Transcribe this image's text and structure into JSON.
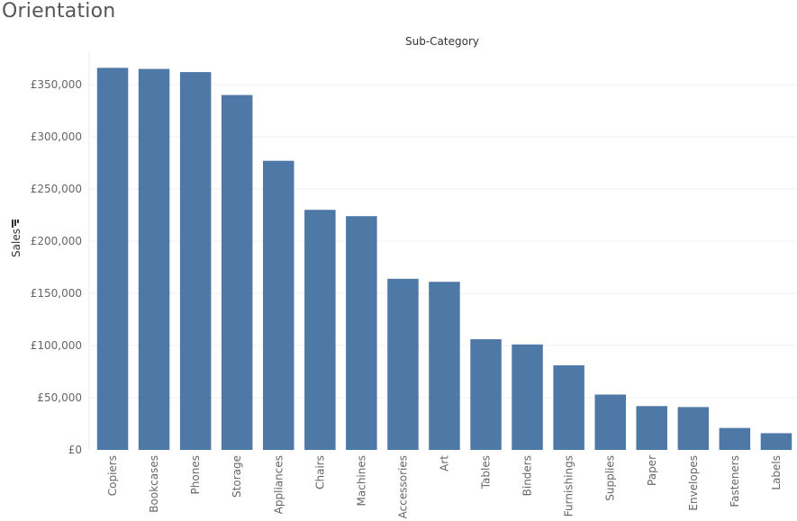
{
  "title": "Orientation",
  "chart_data": {
    "type": "bar",
    "xlabel": "Sub-Category",
    "ylabel": "Sales",
    "categories": [
      "Copiers",
      "Bookcases",
      "Phones",
      "Storage",
      "Appliances",
      "Chairs",
      "Machines",
      "Accessories",
      "Art",
      "Tables",
      "Binders",
      "Furnishings",
      "Supplies",
      "Paper",
      "Envelopes",
      "Fasteners",
      "Labels"
    ],
    "values": [
      366000,
      365000,
      362000,
      340000,
      277000,
      230000,
      224000,
      164000,
      161000,
      106000,
      101000,
      81000,
      53000,
      42000,
      41000,
      21000,
      16000
    ],
    "yticks": [
      0,
      50000,
      100000,
      150000,
      200000,
      250000,
      300000,
      350000
    ],
    "ytick_labels": [
      "£0",
      "£50,000",
      "£100,000",
      "£150,000",
      "£200,000",
      "£250,000",
      "£300,000",
      "£350,000"
    ],
    "ylim": [
      0,
      350000
    ],
    "grid": true,
    "bar_color": "#4e79a7",
    "sort_indicator": "descending"
  }
}
